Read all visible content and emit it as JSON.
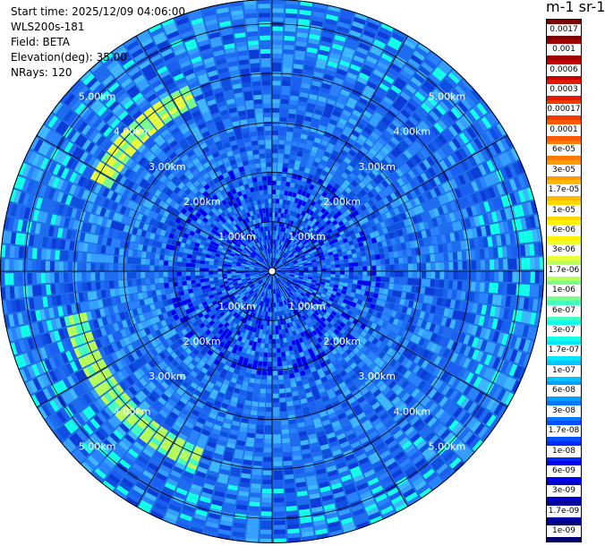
{
  "header": {
    "start_time": "Start time: 2025/12/09 04:06:00",
    "instrument": "WLS200s-181",
    "field": "Field: BETA",
    "elevation": "Elevation(deg): 35.00",
    "nrays": "NRays: 120"
  },
  "colorbar": {
    "title": "m-1 sr-1",
    "labels": [
      "0.0017",
      "0.001",
      "0.0006",
      "0.0003",
      "0.00017",
      "0.0001",
      "6e-05",
      "3e-05",
      "1.7e-05",
      "1e-05",
      "6e-06",
      "3e-06",
      "1.7e-06",
      "1e-06",
      "6e-07",
      "3e-07",
      "1.7e-07",
      "1e-07",
      "6e-08",
      "3e-08",
      "1.7e-08",
      "1e-08",
      "6e-09",
      "3e-09",
      "1.7e-09",
      "1e-09"
    ],
    "colors": [
      "#7a0000",
      "#a00000",
      "#c80000",
      "#e11a00",
      "#f03a00",
      "#ff5a00",
      "#ff7a00",
      "#ff9a00",
      "#ffb900",
      "#ffd800",
      "#fff200",
      "#e8ff3a",
      "#b8ff5a",
      "#7cff8a",
      "#44ffc0",
      "#12ffe8",
      "#00e6ff",
      "#00c4ff",
      "#00a0ff",
      "#0078ff",
      "#0050ff",
      "#0028ff",
      "#0000f0",
      "#0000c8",
      "#00009a",
      "#000070"
    ]
  },
  "ppi": {
    "range_labels": [
      "1.00km",
      "2.00km",
      "3.00km",
      "4.00km",
      "5.00km"
    ],
    "range_label_positions": [
      "upper-left",
      "upper-right",
      "lower-left",
      "lower-right"
    ],
    "max_range_km": 5.5,
    "nrays": 120
  }
}
